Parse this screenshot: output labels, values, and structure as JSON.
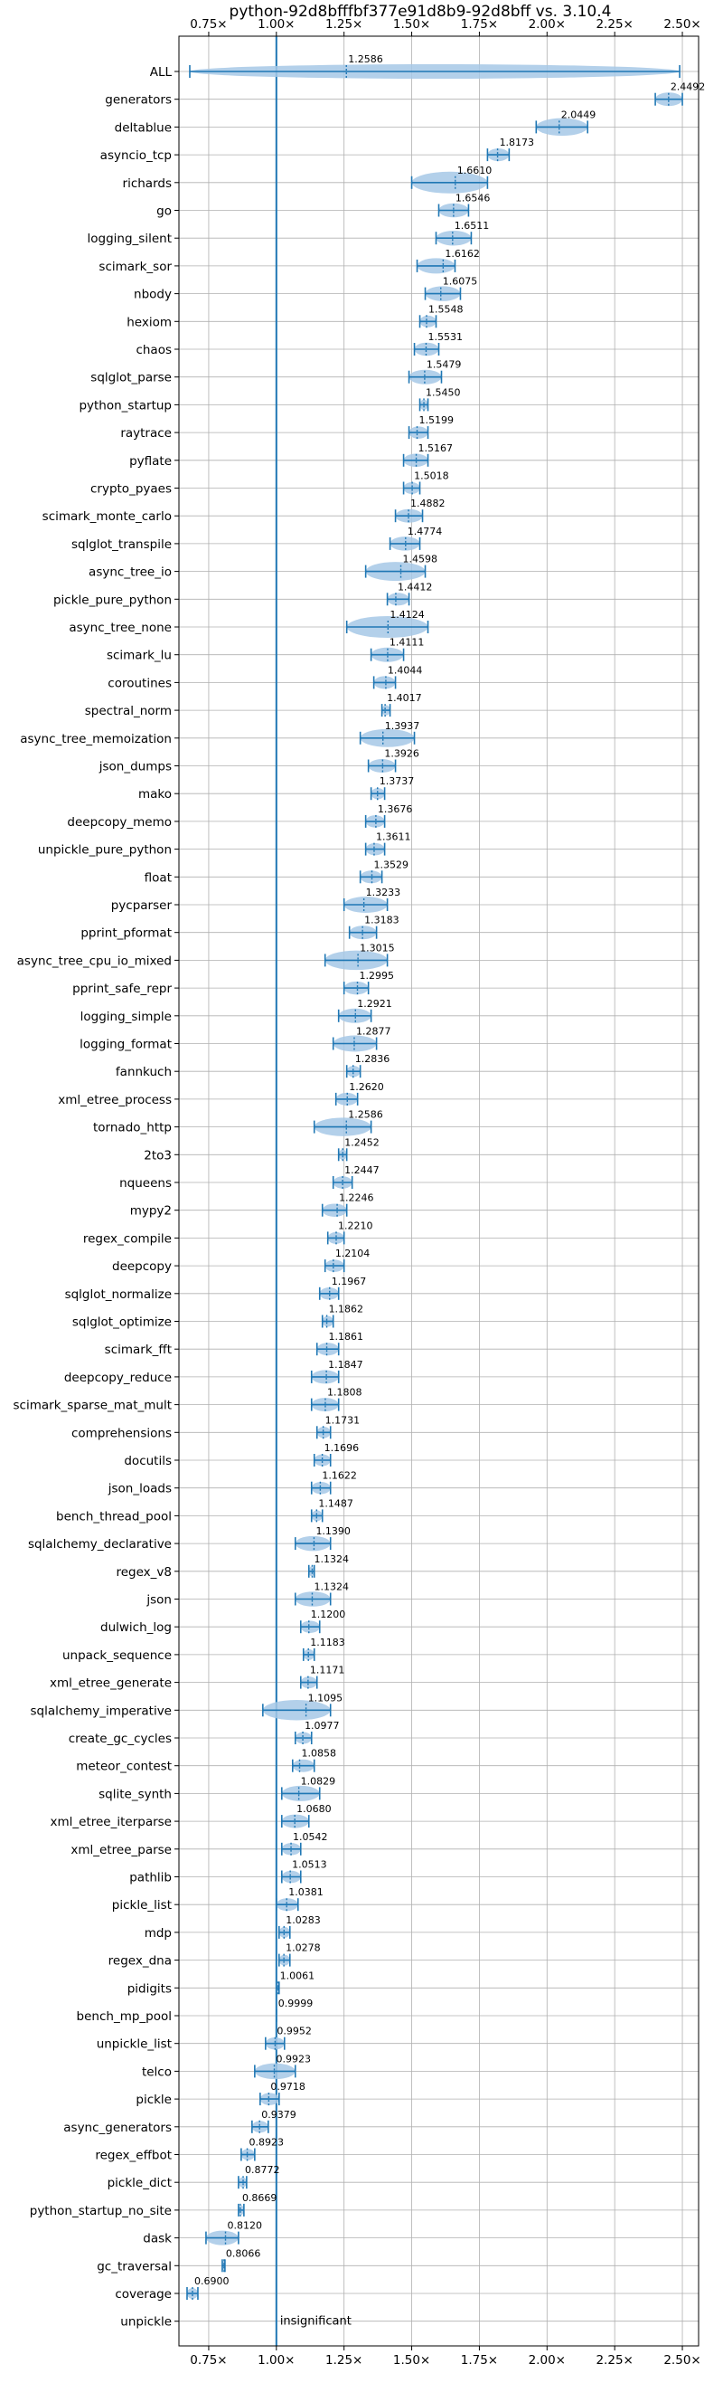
{
  "chart_data": {
    "type": "violin",
    "title": "python-92d8bfffbf377e91d8b9-92d8bff vs. 3.10.4",
    "xlabel": "",
    "ylabel": "",
    "xlim": [
      0.64,
      2.56
    ],
    "x_ticks": [
      0.75,
      1.0,
      1.25,
      1.5,
      1.75,
      2.0,
      2.25,
      2.5
    ],
    "x_tick_labels": [
      "0.75×",
      "1.00×",
      "1.25×",
      "1.50×",
      "1.75×",
      "2.00×",
      "2.25×",
      "2.50×"
    ],
    "grid": true,
    "reference_line": 1.0,
    "colors": {
      "violin": "#a6c8e6",
      "accent": "#1f77b4",
      "grid": "#b0b0b0",
      "text": "#000000"
    },
    "insignificant_label": "insignificant",
    "benchmarks": [
      {
        "name": "ALL",
        "value": 1.2586,
        "value_label": "1.2586",
        "min": 0.68,
        "max": 2.49
      },
      {
        "name": "generators",
        "value": 2.4492,
        "value_label": "2.4492",
        "min": 2.4,
        "max": 2.5
      },
      {
        "name": "deltablue",
        "value": 2.0449,
        "value_label": "2.0449",
        "min": 1.96,
        "max": 2.15
      },
      {
        "name": "asyncio_tcp",
        "value": 1.8173,
        "value_label": "1.8173",
        "min": 1.78,
        "max": 1.86
      },
      {
        "name": "richards",
        "value": 1.661,
        "value_label": "1.6610",
        "min": 1.5,
        "max": 1.78
      },
      {
        "name": "go",
        "value": 1.6546,
        "value_label": "1.6546",
        "min": 1.6,
        "max": 1.71
      },
      {
        "name": "logging_silent",
        "value": 1.6511,
        "value_label": "1.6511",
        "min": 1.59,
        "max": 1.72
      },
      {
        "name": "scimark_sor",
        "value": 1.6162,
        "value_label": "1.6162",
        "min": 1.52,
        "max": 1.66
      },
      {
        "name": "nbody",
        "value": 1.6075,
        "value_label": "1.6075",
        "min": 1.55,
        "max": 1.68
      },
      {
        "name": "hexiom",
        "value": 1.5548,
        "value_label": "1.5548",
        "min": 1.53,
        "max": 1.59
      },
      {
        "name": "chaos",
        "value": 1.5531,
        "value_label": "1.5531",
        "min": 1.51,
        "max": 1.6
      },
      {
        "name": "sqlglot_parse",
        "value": 1.5479,
        "value_label": "1.5479",
        "min": 1.49,
        "max": 1.61
      },
      {
        "name": "python_startup",
        "value": 1.545,
        "value_label": "1.5450",
        "min": 1.53,
        "max": 1.56
      },
      {
        "name": "raytrace",
        "value": 1.5199,
        "value_label": "1.5199",
        "min": 1.49,
        "max": 1.56
      },
      {
        "name": "pyflate",
        "value": 1.5167,
        "value_label": "1.5167",
        "min": 1.47,
        "max": 1.56
      },
      {
        "name": "crypto_pyaes",
        "value": 1.5018,
        "value_label": "1.5018",
        "min": 1.47,
        "max": 1.53
      },
      {
        "name": "scimark_monte_carlo",
        "value": 1.4882,
        "value_label": "1.4882",
        "min": 1.44,
        "max": 1.54
      },
      {
        "name": "sqlglot_transpile",
        "value": 1.4774,
        "value_label": "1.4774",
        "min": 1.42,
        "max": 1.53
      },
      {
        "name": "async_tree_io",
        "value": 1.4598,
        "value_label": "1.4598",
        "min": 1.33,
        "max": 1.55
      },
      {
        "name": "pickle_pure_python",
        "value": 1.4412,
        "value_label": "1.4412",
        "min": 1.41,
        "max": 1.49
      },
      {
        "name": "async_tree_none",
        "value": 1.4124,
        "value_label": "1.4124",
        "min": 1.26,
        "max": 1.56
      },
      {
        "name": "scimark_lu",
        "value": 1.4111,
        "value_label": "1.4111",
        "min": 1.35,
        "max": 1.47
      },
      {
        "name": "coroutines",
        "value": 1.4044,
        "value_label": "1.4044",
        "min": 1.36,
        "max": 1.44
      },
      {
        "name": "spectral_norm",
        "value": 1.4017,
        "value_label": "1.4017",
        "min": 1.39,
        "max": 1.42
      },
      {
        "name": "async_tree_memoization",
        "value": 1.3937,
        "value_label": "1.3937",
        "min": 1.31,
        "max": 1.51
      },
      {
        "name": "json_dumps",
        "value": 1.3926,
        "value_label": "1.3926",
        "min": 1.34,
        "max": 1.44
      },
      {
        "name": "mako",
        "value": 1.3737,
        "value_label": "1.3737",
        "min": 1.35,
        "max": 1.4
      },
      {
        "name": "deepcopy_memo",
        "value": 1.3676,
        "value_label": "1.3676",
        "min": 1.33,
        "max": 1.4
      },
      {
        "name": "unpickle_pure_python",
        "value": 1.3611,
        "value_label": "1.3611",
        "min": 1.33,
        "max": 1.4
      },
      {
        "name": "float",
        "value": 1.3529,
        "value_label": "1.3529",
        "min": 1.31,
        "max": 1.39
      },
      {
        "name": "pycparser",
        "value": 1.3233,
        "value_label": "1.3233",
        "min": 1.25,
        "max": 1.41
      },
      {
        "name": "pprint_pformat",
        "value": 1.3183,
        "value_label": "1.3183",
        "min": 1.27,
        "max": 1.37
      },
      {
        "name": "async_tree_cpu_io_mixed",
        "value": 1.3015,
        "value_label": "1.3015",
        "min": 1.18,
        "max": 1.41
      },
      {
        "name": "pprint_safe_repr",
        "value": 1.2995,
        "value_label": "1.2995",
        "min": 1.25,
        "max": 1.34
      },
      {
        "name": "logging_simple",
        "value": 1.2921,
        "value_label": "1.2921",
        "min": 1.23,
        "max": 1.35
      },
      {
        "name": "logging_format",
        "value": 1.2877,
        "value_label": "1.2877",
        "min": 1.21,
        "max": 1.37
      },
      {
        "name": "fannkuch",
        "value": 1.2836,
        "value_label": "1.2836",
        "min": 1.26,
        "max": 1.31
      },
      {
        "name": "xml_etree_process",
        "value": 1.262,
        "value_label": "1.2620",
        "min": 1.22,
        "max": 1.3
      },
      {
        "name": "tornado_http",
        "value": 1.2586,
        "value_label": "1.2586",
        "min": 1.14,
        "max": 1.35
      },
      {
        "name": "2to3",
        "value": 1.2452,
        "value_label": "1.2452",
        "min": 1.23,
        "max": 1.26
      },
      {
        "name": "nqueens",
        "value": 1.2447,
        "value_label": "1.2447",
        "min": 1.21,
        "max": 1.28
      },
      {
        "name": "mypy2",
        "value": 1.2246,
        "value_label": "1.2246",
        "min": 1.17,
        "max": 1.26
      },
      {
        "name": "regex_compile",
        "value": 1.221,
        "value_label": "1.2210",
        "min": 1.19,
        "max": 1.25
      },
      {
        "name": "deepcopy",
        "value": 1.2104,
        "value_label": "1.2104",
        "min": 1.18,
        "max": 1.25
      },
      {
        "name": "sqlglot_normalize",
        "value": 1.1967,
        "value_label": "1.1967",
        "min": 1.16,
        "max": 1.23
      },
      {
        "name": "sqlglot_optimize",
        "value": 1.1862,
        "value_label": "1.1862",
        "min": 1.17,
        "max": 1.21
      },
      {
        "name": "scimark_fft",
        "value": 1.1861,
        "value_label": "1.1861",
        "min": 1.15,
        "max": 1.23
      },
      {
        "name": "deepcopy_reduce",
        "value": 1.1847,
        "value_label": "1.1847",
        "min": 1.13,
        "max": 1.23
      },
      {
        "name": "scimark_sparse_mat_mult",
        "value": 1.1808,
        "value_label": "1.1808",
        "min": 1.13,
        "max": 1.23
      },
      {
        "name": "comprehensions",
        "value": 1.1731,
        "value_label": "1.1731",
        "min": 1.15,
        "max": 1.2
      },
      {
        "name": "docutils",
        "value": 1.1696,
        "value_label": "1.1696",
        "min": 1.14,
        "max": 1.2
      },
      {
        "name": "json_loads",
        "value": 1.1622,
        "value_label": "1.1622",
        "min": 1.13,
        "max": 1.2
      },
      {
        "name": "bench_thread_pool",
        "value": 1.1487,
        "value_label": "1.1487",
        "min": 1.13,
        "max": 1.17
      },
      {
        "name": "sqlalchemy_declarative",
        "value": 1.139,
        "value_label": "1.1390",
        "min": 1.07,
        "max": 1.2
      },
      {
        "name": "regex_v8",
        "value": 1.1324,
        "value_label": "1.1324",
        "min": 1.12,
        "max": 1.14
      },
      {
        "name": "json",
        "value": 1.1324,
        "value_label": "1.1324",
        "min": 1.07,
        "max": 1.2
      },
      {
        "name": "dulwich_log",
        "value": 1.12,
        "value_label": "1.1200",
        "min": 1.09,
        "max": 1.16
      },
      {
        "name": "unpack_sequence",
        "value": 1.1183,
        "value_label": "1.1183",
        "min": 1.1,
        "max": 1.14
      },
      {
        "name": "xml_etree_generate",
        "value": 1.1171,
        "value_label": "1.1171",
        "min": 1.09,
        "max": 1.15
      },
      {
        "name": "sqlalchemy_imperative",
        "value": 1.1095,
        "value_label": "1.1095",
        "min": 0.95,
        "max": 1.2
      },
      {
        "name": "create_gc_cycles",
        "value": 1.0977,
        "value_label": "1.0977",
        "min": 1.07,
        "max": 1.13
      },
      {
        "name": "meteor_contest",
        "value": 1.0858,
        "value_label": "1.0858",
        "min": 1.06,
        "max": 1.14
      },
      {
        "name": "sqlite_synth",
        "value": 1.0829,
        "value_label": "1.0829",
        "min": 1.02,
        "max": 1.16
      },
      {
        "name": "xml_etree_iterparse",
        "value": 1.068,
        "value_label": "1.0680",
        "min": 1.02,
        "max": 1.12
      },
      {
        "name": "xml_etree_parse",
        "value": 1.0542,
        "value_label": "1.0542",
        "min": 1.02,
        "max": 1.09
      },
      {
        "name": "pathlib",
        "value": 1.0513,
        "value_label": "1.0513",
        "min": 1.02,
        "max": 1.09
      },
      {
        "name": "pickle_list",
        "value": 1.0381,
        "value_label": "1.0381",
        "min": 1.0,
        "max": 1.08
      },
      {
        "name": "mdp",
        "value": 1.0283,
        "value_label": "1.0283",
        "min": 1.01,
        "max": 1.05
      },
      {
        "name": "regex_dna",
        "value": 1.0278,
        "value_label": "1.0278",
        "min": 1.01,
        "max": 1.05
      },
      {
        "name": "pidigits",
        "value": 1.0061,
        "value_label": "1.0061",
        "min": 1.0,
        "max": 1.01
      },
      {
        "name": "bench_mp_pool",
        "value": 0.9999,
        "value_label": "0.9999",
        "min": 1.0,
        "max": 1.0
      },
      {
        "name": "unpickle_list",
        "value": 0.9952,
        "value_label": "0.9952",
        "min": 0.96,
        "max": 1.03
      },
      {
        "name": "telco",
        "value": 0.9923,
        "value_label": "0.9923",
        "min": 0.92,
        "max": 1.07
      },
      {
        "name": "pickle",
        "value": 0.9718,
        "value_label": "0.9718",
        "min": 0.94,
        "max": 1.01
      },
      {
        "name": "async_generators",
        "value": 0.9379,
        "value_label": "0.9379",
        "min": 0.91,
        "max": 0.97
      },
      {
        "name": "regex_effbot",
        "value": 0.8923,
        "value_label": "0.8923",
        "min": 0.87,
        "max": 0.92
      },
      {
        "name": "pickle_dict",
        "value": 0.8772,
        "value_label": "0.8772",
        "min": 0.86,
        "max": 0.89
      },
      {
        "name": "python_startup_no_site",
        "value": 0.8669,
        "value_label": "0.8669",
        "min": 0.86,
        "max": 0.88
      },
      {
        "name": "dask",
        "value": 0.812,
        "value_label": "0.8120",
        "min": 0.74,
        "max": 0.86
      },
      {
        "name": "gc_traversal",
        "value": 0.8066,
        "value_label": "0.8066",
        "min": 0.8,
        "max": 0.81
      },
      {
        "name": "coverage",
        "value": 0.69,
        "value_label": "0.6900",
        "min": 0.67,
        "max": 0.71
      },
      {
        "name": "unpickle",
        "value": null,
        "value_label": "",
        "min": null,
        "max": null
      }
    ]
  }
}
